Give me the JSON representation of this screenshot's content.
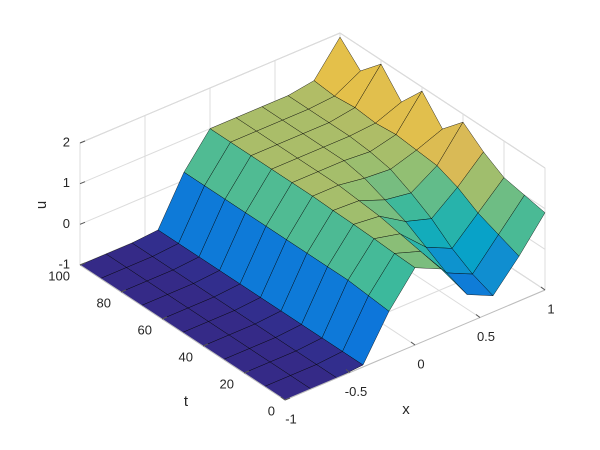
{
  "chart_data": {
    "type": "surface",
    "xlabel": "x",
    "ylabel": "t",
    "zlabel": "u",
    "x": [
      -1,
      -0.8,
      -0.6,
      -0.4,
      -0.2,
      0,
      0.2,
      0.4,
      0.6,
      0.8,
      1
    ],
    "y": [
      0,
      10,
      20,
      30,
      40,
      50,
      60,
      70,
      80,
      90,
      100
    ],
    "z": [
      [
        -1,
        -1,
        -1,
        -0.95,
        0.1,
        0.9,
        0.6,
        -0.3,
        -0.6,
        0.1,
        0.9
      ],
      [
        -1,
        -1,
        -1,
        -0.95,
        0.15,
        0.92,
        0.7,
        -0.1,
        -0.4,
        0.3,
        1.0
      ],
      [
        -1,
        -1,
        -1,
        -0.95,
        0.2,
        0.95,
        0.8,
        0.2,
        -0.1,
        0.5,
        1.1
      ],
      [
        -1,
        -1,
        -1,
        -0.95,
        0.2,
        0.97,
        0.9,
        0.5,
        0.3,
        0.8,
        1.4
      ],
      [
        -1,
        -1,
        -1,
        -0.95,
        0.2,
        0.98,
        0.95,
        0.7,
        0.6,
        1.0,
        1.8
      ],
      [
        -1,
        -1,
        -1,
        -0.95,
        0.2,
        1,
        1,
        0.9,
        0.85,
        1.05,
        1.3
      ],
      [
        -1,
        -1,
        -1,
        -0.95,
        0.2,
        1,
        1,
        1,
        0.95,
        1.1,
        1.9
      ],
      [
        -1,
        -1,
        -1,
        -0.95,
        0.2,
        1,
        1,
        1,
        1,
        1.05,
        1.3
      ],
      [
        -1,
        -1,
        -1,
        -0.95,
        0.2,
        1,
        1,
        1,
        1,
        1.1,
        1.9
      ],
      [
        -1,
        -1,
        -1,
        -0.95,
        0.2,
        1,
        1,
        1,
        1,
        1.05,
        1.4
      ],
      [
        -1,
        -1,
        -1,
        -0.95,
        0.2,
        1,
        1,
        1,
        1,
        1.1,
        1.9
      ]
    ],
    "xlim": [
      -1,
      1
    ],
    "ylim": [
      0,
      100
    ],
    "zlim": [
      -1,
      2
    ],
    "xticks": [
      -1,
      -0.5,
      0,
      0.5,
      1
    ],
    "yticks": [
      0,
      20,
      40,
      60,
      80,
      100
    ],
    "zticks": [
      -1,
      0,
      1,
      2
    ],
    "colormap": [
      "#352a87",
      "#0363e1",
      "#1485d4",
      "#06a7c6",
      "#38b99e",
      "#92bf73",
      "#d9ba56",
      "#fcce2e",
      "#f9fb0e"
    ],
    "edgecolor": "#000000",
    "grid": true
  }
}
